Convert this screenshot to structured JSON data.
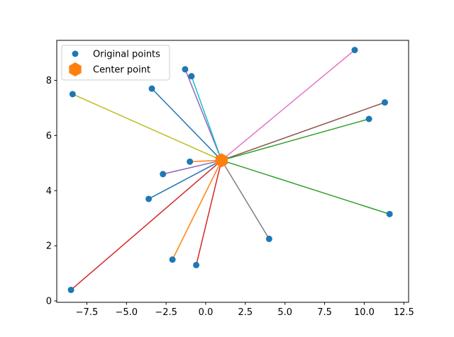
{
  "chart_data": {
    "type": "scatter",
    "title": "",
    "xlabel": "",
    "ylabel": "",
    "xlim": [
      -9.4,
      12.8
    ],
    "ylim": [
      -0.05,
      9.45
    ],
    "xticks": [
      -7.5,
      -5.0,
      -2.5,
      0.0,
      2.5,
      5.0,
      7.5,
      10.0,
      12.5
    ],
    "xtick_labels": [
      "−7.5",
      "−5.0",
      "−2.5",
      "0.0",
      "2.5",
      "5.0",
      "7.5",
      "10.0",
      "12.5"
    ],
    "yticks": [
      0,
      2,
      4,
      6,
      8
    ],
    "ytick_labels": [
      "0",
      "2",
      "4",
      "6",
      "8"
    ],
    "center": {
      "x": 1.0,
      "y": 5.1
    },
    "points": [
      {
        "x": 9.4,
        "y": 9.1,
        "color": "#e377c2"
      },
      {
        "x": -1.3,
        "y": 8.4,
        "color": "#9467bd"
      },
      {
        "x": -0.9,
        "y": 8.15,
        "color": "#17becf"
      },
      {
        "x": -3.4,
        "y": 7.7,
        "color": "#1f77b4"
      },
      {
        "x": -8.4,
        "y": 7.5,
        "color": "#bcbd22"
      },
      {
        "x": 11.3,
        "y": 7.2,
        "color": "#8c564b"
      },
      {
        "x": 10.3,
        "y": 6.6,
        "color": "#2ca02c"
      },
      {
        "x": -1.0,
        "y": 5.05,
        "color": "#ff7f0e"
      },
      {
        "x": -2.7,
        "y": 4.6,
        "color": "#9467bd"
      },
      {
        "x": -3.6,
        "y": 3.7,
        "color": "#1f77b4"
      },
      {
        "x": 11.6,
        "y": 3.15,
        "color": "#2ca02c"
      },
      {
        "x": 4.0,
        "y": 2.25,
        "color": "#7f7f7f"
      },
      {
        "x": -2.1,
        "y": 1.5,
        "color": "#ff7f0e"
      },
      {
        "x": -0.6,
        "y": 1.3,
        "color": "#d62728"
      },
      {
        "x": -8.5,
        "y": 0.4,
        "color": "#d62728"
      }
    ],
    "legend": {
      "position": "top-left",
      "entries": [
        {
          "label": "Original points",
          "marker": "circle",
          "color": "#1f77b4"
        },
        {
          "label": "Center point",
          "marker": "hexagon",
          "color": "#ff7f0e"
        }
      ]
    },
    "colors": {
      "points": "#1f77b4",
      "center": "#ff7f0e"
    }
  }
}
